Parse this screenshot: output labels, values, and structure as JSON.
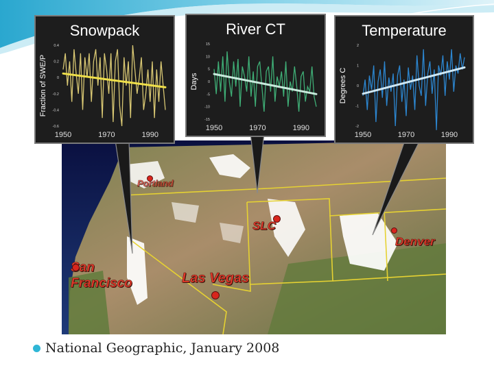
{
  "colors": {
    "snowpack_series": "#d8c773",
    "snowpack_trend": "#f0e04a",
    "river_series": "#3fae76",
    "river_trend": "#c8eadc",
    "temperature_series": "#2c86d0",
    "temperature_trend": "#cfe8f5",
    "city_label": "#e53a2c",
    "caption_bullet": "#2fb6d6"
  },
  "charts": [
    {
      "id": "snowpack",
      "title": "Snowpack",
      "ylabel": "Fraction of SWE/P",
      "xticks": [
        "1950",
        "1970",
        "1990"
      ],
      "yticks": [
        "0.4",
        "0.2",
        "0",
        "-0.2",
        "-0.4",
        "-0.6"
      ]
    },
    {
      "id": "river",
      "title": "River CT",
      "ylabel": "Days",
      "xticks": [
        "1950",
        "1970",
        "1990"
      ],
      "yticks": [
        "15",
        "10",
        "5",
        "0",
        "-5",
        "-10",
        "-15"
      ]
    },
    {
      "id": "temperature",
      "title": "Temperature",
      "ylabel": "Degrees C",
      "xticks": [
        "1950",
        "1970",
        "1990"
      ],
      "yticks": [
        "2",
        "1",
        "0",
        "-1",
        "-2"
      ]
    }
  ],
  "chart_data": [
    {
      "type": "line",
      "title": "Snowpack",
      "ylabel": "Fraction of SWE/P",
      "x": [
        1950,
        1951,
        1952,
        1953,
        1954,
        1955,
        1956,
        1957,
        1958,
        1959,
        1960,
        1961,
        1962,
        1963,
        1964,
        1965,
        1966,
        1967,
        1968,
        1969,
        1970,
        1971,
        1972,
        1973,
        1974,
        1975,
        1976,
        1977,
        1978,
        1979,
        1980,
        1981,
        1982,
        1983,
        1984,
        1985,
        1986,
        1987,
        1988,
        1989,
        1990,
        1991,
        1992,
        1993,
        1994,
        1995,
        1996,
        1997
      ],
      "series": [
        {
          "values": [
            0.1,
            0.3,
            -0.1,
            0.2,
            -0.3,
            0.35,
            0.05,
            -0.2,
            0.3,
            -0.4,
            0.25,
            0.0,
            0.3,
            -0.3,
            0.2,
            0.35,
            -0.1,
            0.25,
            -0.5,
            0.3,
            0.1,
            -0.2,
            0.3,
            -0.55,
            0.2,
            0.35,
            -0.35,
            -0.6,
            0.25,
            -0.1,
            0.2,
            -0.5,
            0.4,
            0.1,
            -0.2,
            0.0,
            0.25,
            -0.4,
            -0.2,
            0.1,
            -0.3,
            0.2,
            -0.5,
            0.1,
            -0.3,
            0.2,
            -0.1,
            -0.4
          ]
        },
        {
          "values": [
            0.05,
            -0.12
          ],
          "x": [
            1950,
            1997
          ]
        }
      ],
      "ylim": [
        -0.6,
        0.4
      ]
    },
    {
      "type": "line",
      "title": "River CT",
      "ylabel": "Days",
      "x": [
        1950,
        1951,
        1952,
        1953,
        1954,
        1955,
        1956,
        1957,
        1958,
        1959,
        1960,
        1961,
        1962,
        1963,
        1964,
        1965,
        1966,
        1967,
        1968,
        1969,
        1970,
        1971,
        1972,
        1973,
        1974,
        1975,
        1976,
        1977,
        1978,
        1979,
        1980,
        1981,
        1982,
        1983,
        1984,
        1985,
        1986,
        1987,
        1988,
        1989,
        1990,
        1991,
        1992,
        1993,
        1994,
        1995,
        1996,
        1997
      ],
      "series": [
        {
          "values": [
            5,
            -5,
            8,
            -4,
            10,
            -8,
            12,
            0,
            -6,
            8,
            -2,
            9,
            -10,
            6,
            2,
            -4,
            10,
            -6,
            4,
            -10,
            6,
            8,
            -2,
            -12,
            4,
            6,
            -4,
            10,
            -8,
            2,
            -2,
            4,
            -6,
            8,
            -10,
            0,
            -4,
            6,
            -2,
            -12,
            2,
            4,
            -8,
            -2,
            -4,
            6,
            -6,
            -10
          ]
        },
        {
          "values": [
            3,
            -5
          ],
          "x": [
            1950,
            1997
          ]
        }
      ],
      "ylim": [
        -15,
        15
      ]
    },
    {
      "type": "line",
      "title": "Temperature",
      "ylabel": "Degrees C",
      "x": [
        1950,
        1951,
        1952,
        1953,
        1954,
        1955,
        1956,
        1957,
        1958,
        1959,
        1960,
        1961,
        1962,
        1963,
        1964,
        1965,
        1966,
        1967,
        1968,
        1969,
        1970,
        1971,
        1972,
        1973,
        1974,
        1975,
        1976,
        1977,
        1978,
        1979,
        1980,
        1981,
        1982,
        1983,
        1984,
        1985,
        1986,
        1987,
        1988,
        1989,
        1990,
        1991,
        1992,
        1993,
        1994,
        1995,
        1996,
        1997
      ],
      "series": [
        {
          "values": [
            -0.5,
            0.3,
            -1.2,
            0.5,
            -0.2,
            1.0,
            -1.8,
            0.2,
            0.8,
            -0.6,
            1.2,
            -1.0,
            0.4,
            -0.3,
            0.6,
            -2.0,
            0.5,
            1.0,
            -0.8,
            0.3,
            -1.5,
            0.9,
            -0.2,
            0.5,
            -1.2,
            1.5,
            0.0,
            -0.5,
            1.8,
            -1.0,
            0.6,
            1.2,
            -0.4,
            0.8,
            -2.2,
            1.0,
            0.5,
            1.5,
            -0.5,
            1.2,
            0.3,
            1.8,
            -0.3,
            1.0,
            0.6,
            1.6,
            0.8,
            1.4
          ]
        },
        {
          "values": [
            -0.4,
            0.9
          ],
          "x": [
            1950,
            1997
          ]
        }
      ],
      "ylim": [
        -2,
        2
      ]
    }
  ],
  "map": {
    "cities": [
      {
        "name": "Portland"
      },
      {
        "name": "SLC"
      },
      {
        "name": "San Francisco"
      },
      {
        "name": "Las Vegas"
      },
      {
        "name": "Denver"
      }
    ]
  },
  "caption": {
    "text": "National Geographic, January 2008"
  }
}
